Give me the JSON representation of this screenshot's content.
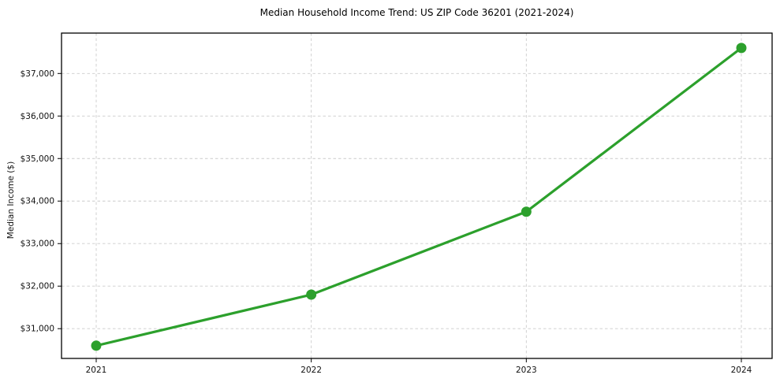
{
  "figure": {
    "background_color": "#ffffff"
  },
  "chart_data": {
    "type": "line",
    "title": "Median Household Income Trend: US ZIP Code 36201 (2021-2024)",
    "xlabel": "",
    "ylabel": "Median Income ($)",
    "x": [
      "2021",
      "2022",
      "2023",
      "2024"
    ],
    "values": [
      30600,
      31800,
      33750,
      37600
    ],
    "y_ticks": [
      31000,
      32000,
      33000,
      34000,
      35000,
      36000,
      37000
    ],
    "y_tick_labels": [
      "$31,000",
      "$32,000",
      "$33,000",
      "$34,000",
      "$35,000",
      "$36,000",
      "$37,000"
    ],
    "ylim": [
      30300,
      37950
    ],
    "grid": true,
    "grid_style": "dashed",
    "legend": "none",
    "line_color": "#2ca02c",
    "marker": "circle",
    "grid_color": "#cccccc",
    "axis_color": "#000000",
    "tick_label_color": "#111111"
  }
}
